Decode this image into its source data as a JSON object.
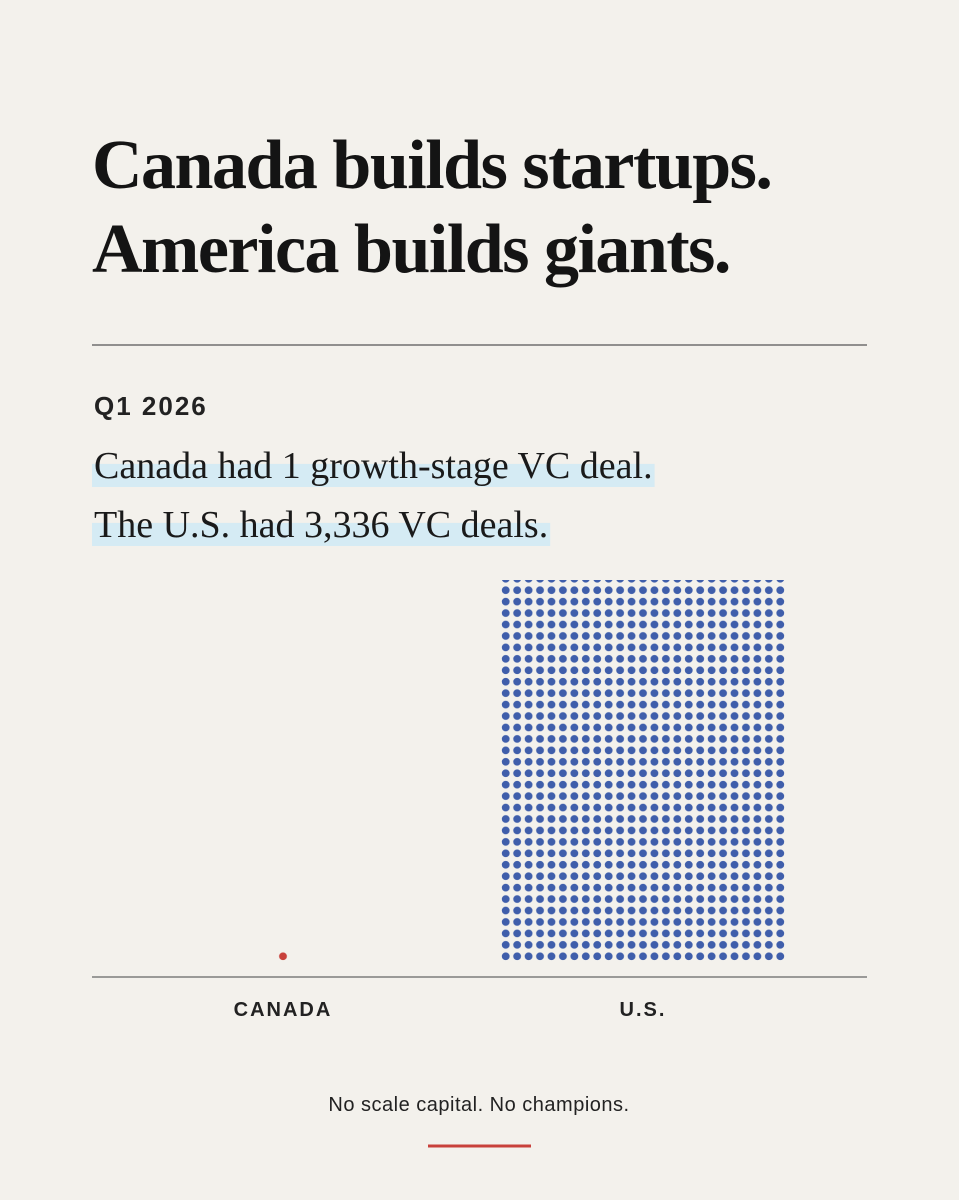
{
  "chart_data": {
    "type": "dot-bar",
    "title": [
      "Canada builds startups.",
      "America builds giants."
    ],
    "subtitle": "Q1 2026",
    "annotations": [
      "Canada had 1 growth-stage VC deal.",
      "The U.S. had 3,336 VC deals."
    ],
    "categories": [
      "CANADA",
      "U.S."
    ],
    "values": [
      1,
      3336
    ],
    "colors": [
      "#c8413b",
      "#3f5eab"
    ],
    "footer": "No scale capital. No champions."
  }
}
